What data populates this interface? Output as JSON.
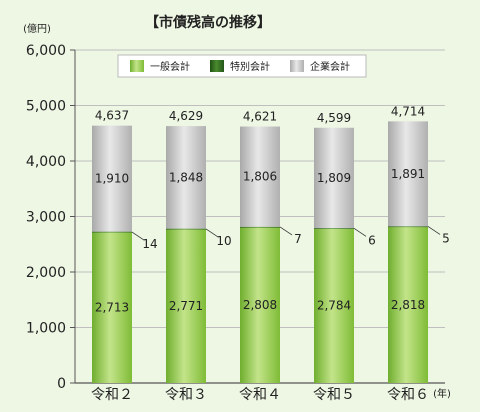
{
  "chart_data": {
    "type": "bar",
    "stacked": true,
    "title": "【市債残高の推移】",
    "y_unit": "(億円)",
    "x_unit": "(年)",
    "categories": [
      "令和２",
      "令和３",
      "令和４",
      "令和５",
      "令和６"
    ],
    "ylim": [
      0,
      6000
    ],
    "yticks": [
      0,
      1000,
      2000,
      3000,
      4000,
      5000,
      6000
    ],
    "ytick_labels": [
      "0",
      "1,000",
      "2,000",
      "3,000",
      "4,000",
      "5,000",
      "6,000"
    ],
    "grid": true,
    "legend_position": "top",
    "series": [
      {
        "name": "一般会計",
        "values": [
          2713,
          2771,
          2808,
          2784,
          2818
        ],
        "labels": [
          "2,713",
          "2,771",
          "2,808",
          "2,784",
          "2,818"
        ],
        "color": "#8cc63f"
      },
      {
        "name": "特別会計",
        "values": [
          14,
          10,
          7,
          6,
          5
        ],
        "labels": [
          "14",
          "10",
          "7",
          "6",
          "5"
        ],
        "color": "#2f6b1f"
      },
      {
        "name": "企業会計",
        "values": [
          1910,
          1848,
          1806,
          1809,
          1891
        ],
        "labels": [
          "1,910",
          "1,848",
          "1,806",
          "1,809",
          "1,891"
        ],
        "color": "#bdbdbd"
      }
    ],
    "totals": [
      4637,
      4629,
      4621,
      4599,
      4714
    ],
    "total_labels": [
      "4,637",
      "4,629",
      "4,621",
      "4,599",
      "4,714"
    ]
  }
}
